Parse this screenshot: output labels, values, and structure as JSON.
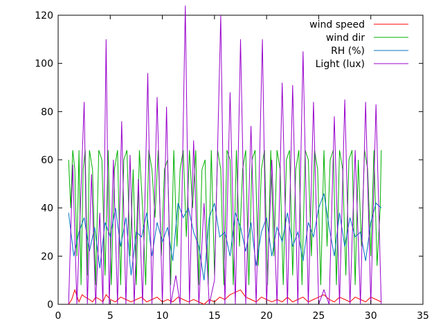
{
  "chart_data": {
    "type": "line",
    "title": "",
    "xlabel": "",
    "ylabel": "",
    "xlim": [
      0,
      35
    ],
    "ylim": [
      0,
      120
    ],
    "x_ticks": [
      0,
      5,
      10,
      15,
      20,
      25,
      30,
      35
    ],
    "y_ticks": [
      0,
      20,
      40,
      60,
      80,
      100,
      120
    ],
    "grid": false,
    "legend_position": "top-right",
    "series": [
      {
        "name": "wind speed",
        "color": "#ff0000",
        "x": [
          1.0,
          1.3,
          1.6,
          2.0,
          2.3,
          2.6,
          3.0,
          3.3,
          3.6,
          4.0,
          4.3,
          4.6,
          5.0,
          5.5,
          6.0,
          6.5,
          7.0,
          7.5,
          8.0,
          8.5,
          9.0,
          9.5,
          10.0,
          10.5,
          11.0,
          11.5,
          12.0,
          12.5,
          13.0,
          13.5,
          14.0,
          14.5,
          15.0,
          15.5,
          16.0,
          16.5,
          17.0,
          17.5,
          18.0,
          18.5,
          19.0,
          19.5,
          20.0,
          20.5,
          21.0,
          21.5,
          22.0,
          22.5,
          23.0,
          23.5,
          24.0,
          24.5,
          25.0,
          25.5,
          26.0,
          26.5,
          27.0,
          27.5,
          28.0,
          28.5,
          29.0,
          29.5,
          30.0,
          30.5,
          31.0
        ],
        "y": [
          0,
          2,
          6,
          1,
          4,
          3,
          2,
          1,
          3,
          2,
          1,
          4,
          2,
          1,
          3,
          2,
          1,
          2,
          3,
          1,
          2,
          3,
          1,
          2,
          1,
          3,
          2,
          1,
          2,
          1,
          0,
          2,
          1,
          3,
          2,
          4,
          5,
          6,
          3,
          2,
          1,
          3,
          2,
          1,
          2,
          1,
          3,
          1,
          2,
          3,
          1,
          2,
          3,
          4,
          2,
          1,
          3,
          2,
          1,
          3,
          2,
          1,
          3,
          2,
          1
        ]
      },
      {
        "name": "wind dir",
        "color": "#00b000",
        "x": [
          1.0,
          1.2,
          1.4,
          1.6,
          1.8,
          2.0,
          2.2,
          2.4,
          2.6,
          2.8,
          3.0,
          3.3,
          3.6,
          3.9,
          4.2,
          4.5,
          4.8,
          5.1,
          5.4,
          5.7,
          6.0,
          6.3,
          6.6,
          6.9,
          7.2,
          7.5,
          7.8,
          8.1,
          8.4,
          8.7,
          9.0,
          9.3,
          9.6,
          9.9,
          10.2,
          10.5,
          10.8,
          11.1,
          11.4,
          11.7,
          12.0,
          12.3,
          12.6,
          12.9,
          13.2,
          13.5,
          13.8,
          14.1,
          14.4,
          14.7,
          15.0,
          15.3,
          15.6,
          15.9,
          16.2,
          16.5,
          16.8,
          17.1,
          17.4,
          17.7,
          18.0,
          18.3,
          18.6,
          18.9,
          19.2,
          19.5,
          19.8,
          20.1,
          20.4,
          20.7,
          21.0,
          21.3,
          21.6,
          21.9,
          22.2,
          22.5,
          22.8,
          23.1,
          23.4,
          23.7,
          24.0,
          24.3,
          24.6,
          24.9,
          25.2,
          25.5,
          25.8,
          26.1,
          26.4,
          26.7,
          27.0,
          27.3,
          27.6,
          27.9,
          28.2,
          28.5,
          28.8,
          29.1,
          29.4,
          29.7,
          30.0,
          30.3,
          30.6,
          30.9,
          31.0
        ],
        "y": [
          60,
          40,
          64,
          56,
          20,
          64,
          8,
          56,
          64,
          12,
          64,
          56,
          8,
          64,
          60,
          12,
          64,
          8,
          56,
          64,
          8,
          60,
          64,
          20,
          56,
          8,
          64,
          40,
          8,
          64,
          56,
          36,
          64,
          20,
          56,
          60,
          8,
          64,
          24,
          56,
          64,
          28,
          64,
          40,
          64,
          8,
          56,
          60,
          8,
          64,
          12,
          64,
          56,
          8,
          64,
          60,
          8,
          64,
          24,
          56,
          64,
          8,
          60,
          64,
          16,
          56,
          64,
          8,
          64,
          20,
          64,
          56,
          8,
          60,
          64,
          12,
          56,
          64,
          8,
          64,
          60,
          20,
          64,
          56,
          8,
          64,
          24,
          60,
          64,
          8,
          64,
          56,
          12,
          60,
          64,
          8,
          60,
          24,
          64,
          56,
          20,
          64,
          16,
          40,
          64
        ]
      },
      {
        "name": "RH (%)",
        "color": "#0070c0",
        "x": [
          1.0,
          1.5,
          2.0,
          2.5,
          3.0,
          3.5,
          4.0,
          4.5,
          5.0,
          5.5,
          6.0,
          6.5,
          7.0,
          7.5,
          8.0,
          8.5,
          9.0,
          9.5,
          10.0,
          10.5,
          11.0,
          11.5,
          12.0,
          12.5,
          13.0,
          13.5,
          14.0,
          14.5,
          15.0,
          15.5,
          16.0,
          16.5,
          17.0,
          17.5,
          18.0,
          18.5,
          19.0,
          19.5,
          20.0,
          20.5,
          21.0,
          21.5,
          22.0,
          22.5,
          23.0,
          23.5,
          24.0,
          24.5,
          25.0,
          25.5,
          26.0,
          26.5,
          27.0,
          27.5,
          28.0,
          28.5,
          29.0,
          29.5,
          30.0,
          30.5,
          31.0
        ],
        "y": [
          38,
          20,
          30,
          36,
          22,
          32,
          15,
          34,
          28,
          40,
          24,
          36,
          12,
          30,
          28,
          38,
          20,
          34,
          26,
          32,
          18,
          42,
          36,
          40,
          30,
          24,
          10,
          36,
          42,
          28,
          30,
          20,
          38,
          32,
          22,
          34,
          16,
          30,
          36,
          20,
          32,
          26,
          38,
          24,
          30,
          18,
          34,
          28,
          40,
          46,
          32,
          20,
          38,
          24,
          36,
          28,
          30,
          18,
          34,
          42,
          40
        ]
      },
      {
        "name": "Light (lux)",
        "color": "#9900cc",
        "x": [
          1.0,
          1.4,
          1.8,
          2.2,
          2.5,
          2.8,
          3.2,
          3.6,
          4.0,
          4.3,
          4.6,
          4.9,
          5.3,
          5.7,
          6.1,
          6.5,
          6.9,
          7.3,
          7.7,
          8.1,
          8.6,
          9.0,
          9.5,
          10.0,
          10.4,
          10.8,
          11.3,
          11.7,
          12.2,
          12.6,
          13.0,
          13.5,
          14.0,
          14.5,
          15.0,
          15.6,
          16.0,
          16.5,
          17.0,
          17.5,
          18.0,
          18.5,
          19.0,
          19.6,
          20.0,
          20.5,
          21.0,
          21.5,
          22.0,
          22.5,
          23.0,
          23.5,
          24.0,
          24.5,
          25.0,
          25.5,
          26.0,
          26.5,
          27.0,
          27.5,
          28.0,
          28.5,
          29.0,
          29.5,
          30.0,
          30.5,
          31.0
        ],
        "y": [
          0,
          58,
          0,
          48,
          84,
          0,
          54,
          0,
          38,
          0,
          110,
          0,
          60,
          0,
          76,
          0,
          62,
          0,
          52,
          0,
          96,
          0,
          86,
          0,
          82,
          0,
          12,
          0,
          124,
          0,
          68,
          0,
          42,
          0,
          10,
          120,
          0,
          88,
          0,
          110,
          0,
          74,
          0,
          110,
          0,
          60,
          0,
          92,
          0,
          91,
          0,
          105,
          0,
          84,
          0,
          6,
          0,
          78,
          0,
          85,
          0,
          64,
          0,
          84,
          0,
          83,
          0
        ]
      }
    ]
  }
}
